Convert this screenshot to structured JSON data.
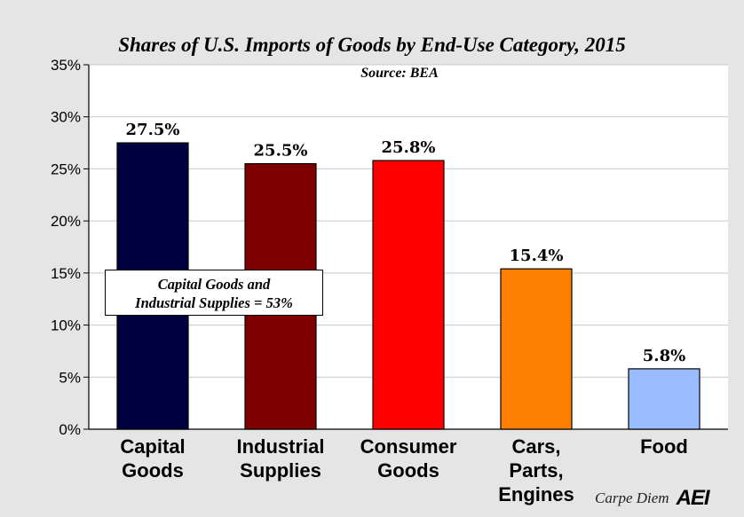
{
  "chart_data": {
    "type": "bar",
    "title": "Shares of U.S. Imports of Goods by End-Use Category, 2015",
    "subtitle": "Source: BEA",
    "categories": [
      [
        "Capital",
        "Goods"
      ],
      [
        "Industrial",
        "Supplies"
      ],
      [
        "Consumer",
        "Goods"
      ],
      [
        "Cars,",
        "Parts,",
        "Engines"
      ],
      [
        "Food"
      ]
    ],
    "values": [
      27.5,
      25.5,
      25.8,
      15.4,
      5.8
    ],
    "value_labels": [
      "27.5%",
      "25.5%",
      "25.8%",
      "15.4%",
      "5.8%"
    ],
    "colors": [
      "#000040",
      "#800000",
      "#ff0000",
      "#ff8000",
      "#99bbff"
    ],
    "ylim": [
      0,
      35
    ],
    "yticks": [
      0,
      5,
      10,
      15,
      20,
      25,
      30,
      35
    ],
    "ytick_labels": [
      "0%",
      "5%",
      "10%",
      "15%",
      "20%",
      "25%",
      "30%",
      "35%"
    ],
    "grid": true,
    "xlabel": "",
    "ylabel": ""
  },
  "annotation": {
    "line1": "Capital Goods and",
    "line2": "Industrial Supplies = 53%"
  },
  "watermark": {
    "text": "Carpe Diem",
    "logo": "AEI"
  }
}
